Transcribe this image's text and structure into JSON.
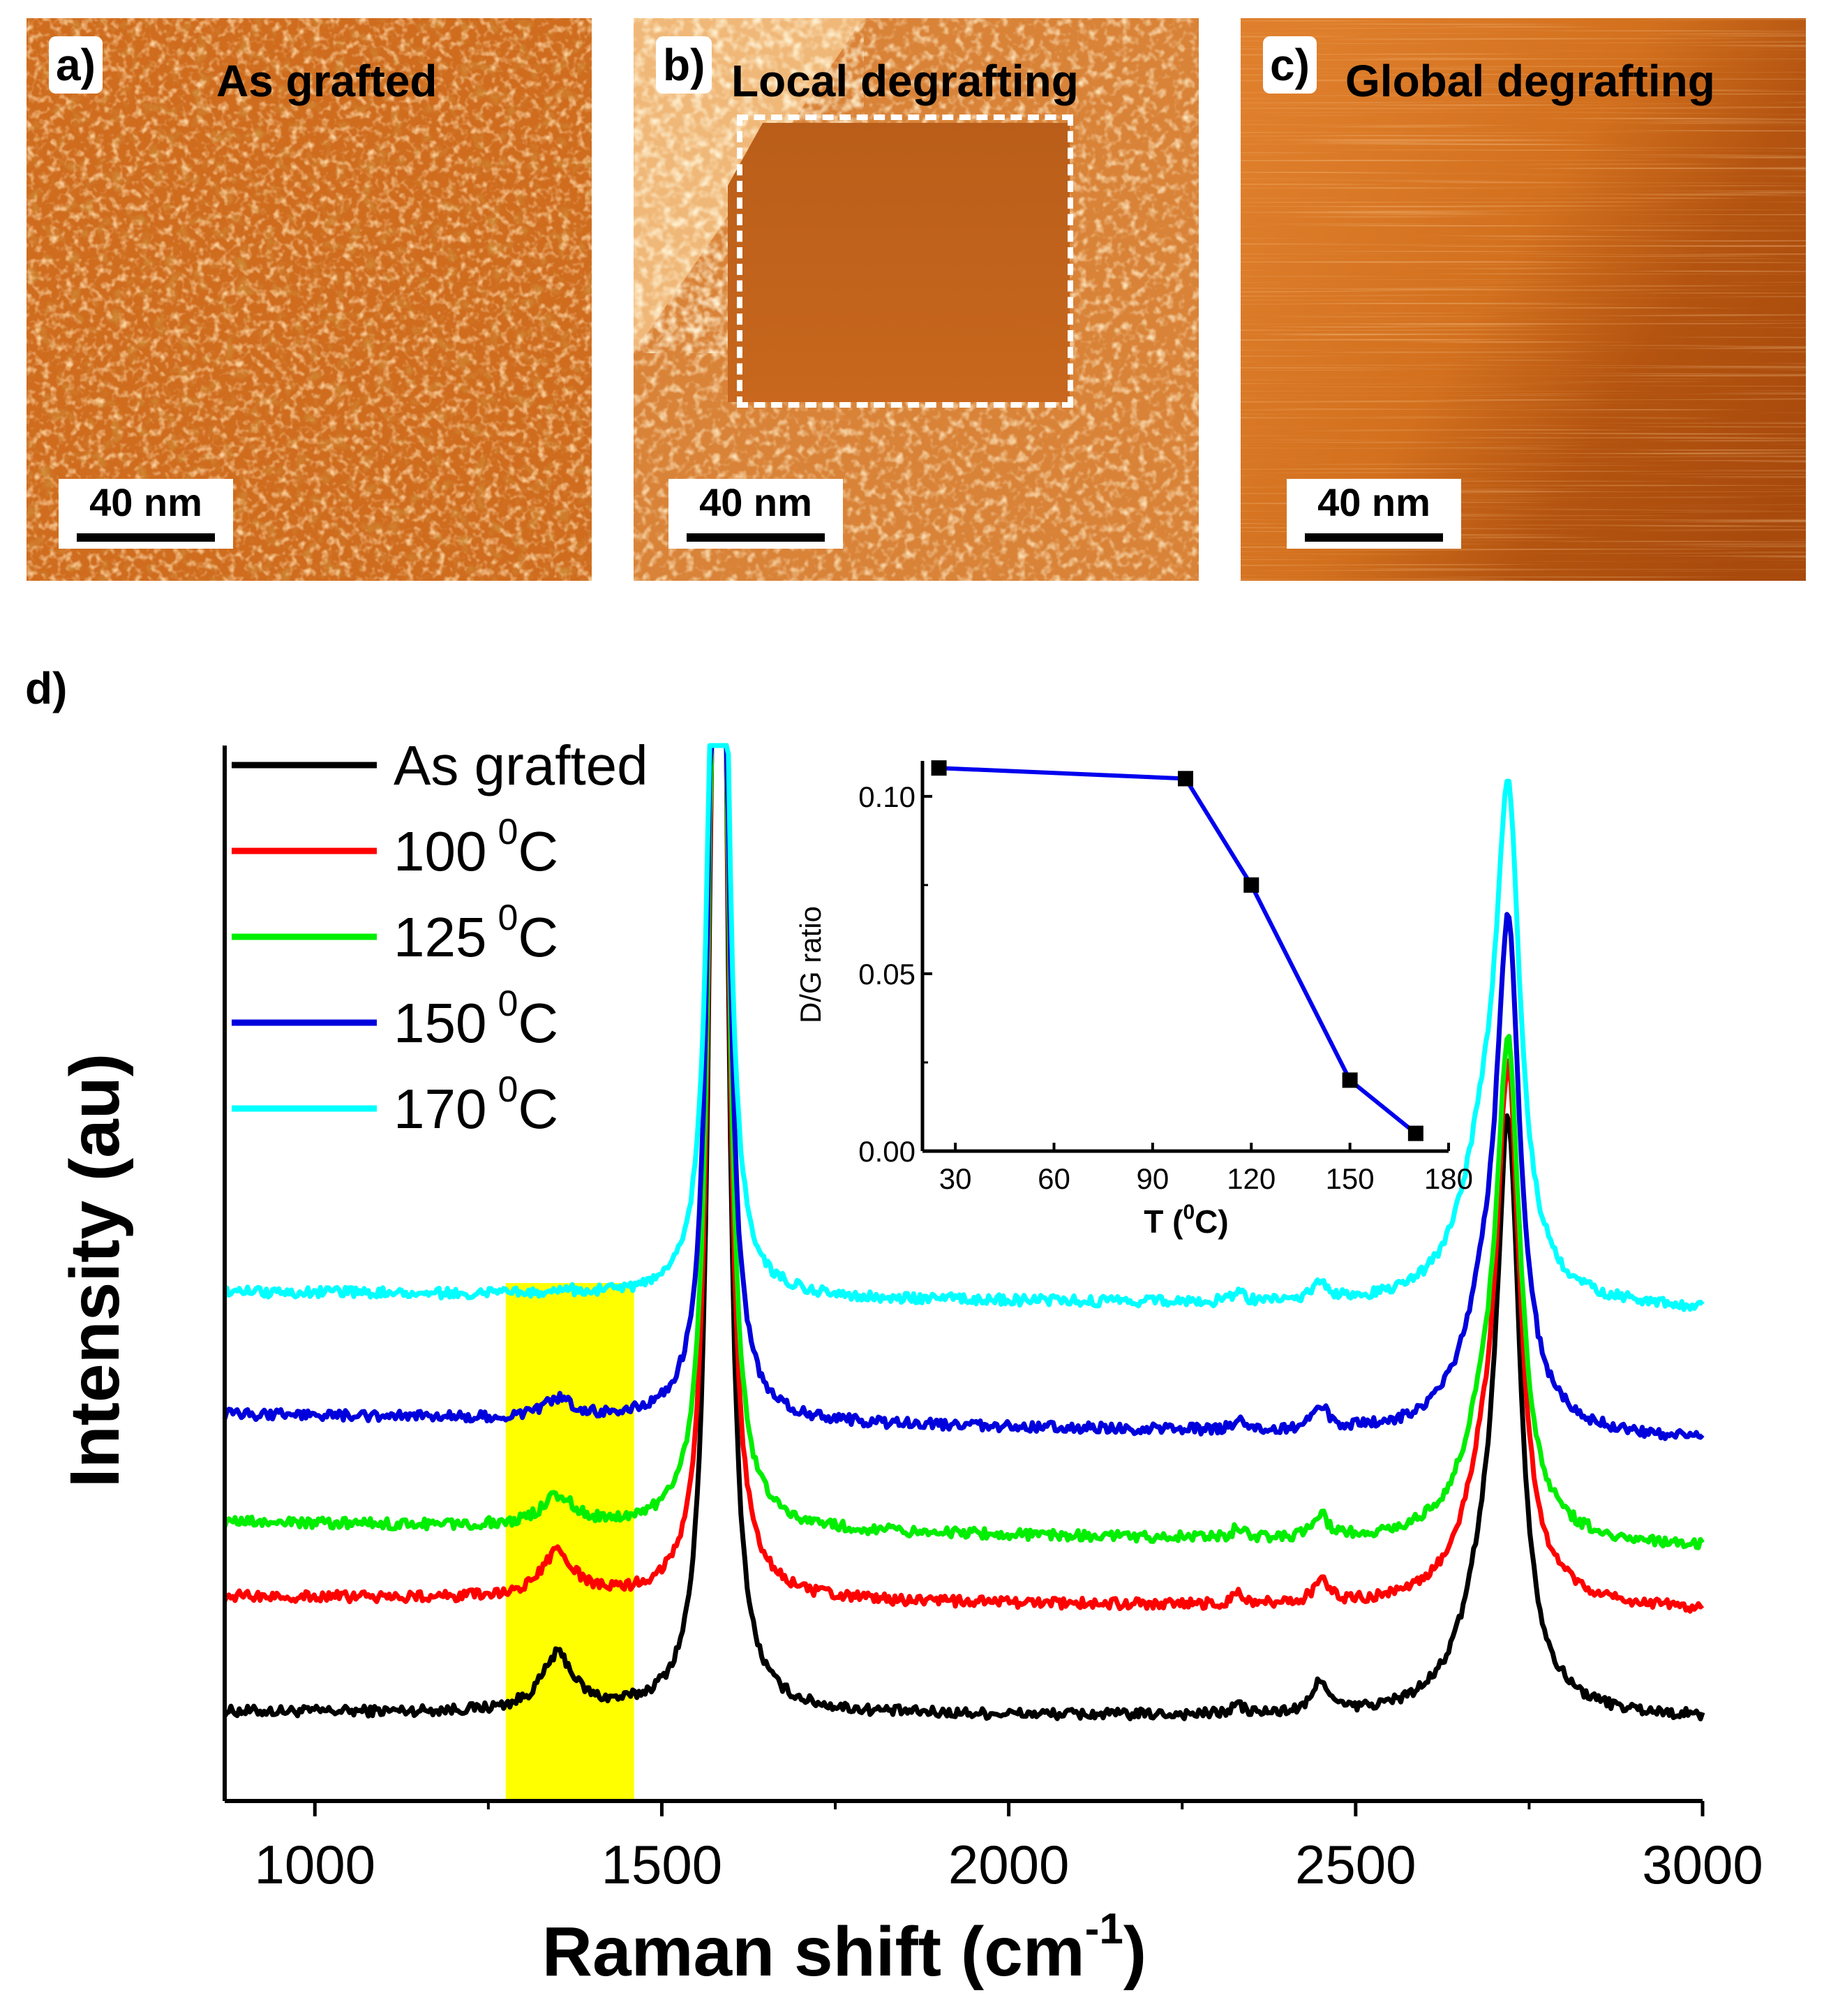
{
  "panels": [
    {
      "label": "a)",
      "title": "As grafted",
      "scalebar": "40 nm"
    },
    {
      "label": "b)",
      "title": "Local degrafting",
      "scalebar": "40 nm"
    },
    {
      "label": "c)",
      "title": "Global degrafting",
      "scalebar": "40 nm"
    }
  ],
  "panel_d_label": "d)",
  "colors": {
    "afm_base": "#cc6a1a",
    "afm_light": "#f2a860",
    "afm_dark": "#9e4a0c",
    "highlight": "#ffff00"
  },
  "chart_data": [
    {
      "type": "line",
      "title": "",
      "xlabel": "Raman shift (cm-1)",
      "xlabel_main": "Raman shift (cm",
      "xlabel_sup": "-1",
      "xlabel_close": ")",
      "ylabel": "Intensity (au)",
      "xlim": [
        870,
        3000
      ],
      "ylim": [
        0,
        14.2
      ],
      "xticks": [
        1000,
        1500,
        2000,
        2500,
        3000
      ],
      "highlight_region": [
        1275,
        1460
      ],
      "legend": {
        "position": "top-left",
        "entries": [
          {
            "label": "As grafted",
            "color": "#000000"
          },
          {
            "label": "100",
            "sup": "0",
            "unit": "C",
            "color": "#ff0000"
          },
          {
            "label": "125",
            "sup": "0",
            "unit": "C",
            "color": "#00ee00"
          },
          {
            "label": "150",
            "sup": "0",
            "unit": "C",
            "color": "#0000dd"
          },
          {
            "label": "170",
            "sup": "0",
            "unit": "C",
            "color": "#00ffff"
          }
        ]
      },
      "series": [
        {
          "name": "As grafted",
          "color": "#000000",
          "baseline": 1.2,
          "tilt": -0.1,
          "d_peak": 0.75,
          "g_peak": 26.0,
          "twod_peak": 7.2,
          "twod_shoulder": 1.45,
          "peak_2450": 0.45
        },
        {
          "name": "100 0C",
          "color": "#ff0000",
          "baseline": 2.75,
          "tilt": -0.2,
          "d_peak": 0.6,
          "g_peak": 24.0,
          "twod_peak": 6.5,
          "twod_shoulder": 1.35,
          "peak_2450": 0.35
        },
        {
          "name": "125 0C",
          "color": "#00ee00",
          "baseline": 3.75,
          "tilt": -0.35,
          "d_peak": 0.4,
          "g_peak": 23.0,
          "twod_peak": 6.0,
          "twod_shoulder": 1.3,
          "peak_2450": 0.3
        },
        {
          "name": "150 0C",
          "color": "#0000dd",
          "baseline": 5.2,
          "tilt": -0.35,
          "d_peak": 0.25,
          "g_peak": 21.0,
          "twod_peak": 6.1,
          "twod_shoulder": 1.4,
          "peak_2450": 0.32
        },
        {
          "name": "170 0C",
          "color": "#00ffff",
          "baseline": 6.85,
          "tilt": -0.25,
          "d_peak": 0.05,
          "g_peak": 19.0,
          "twod_peak": 5.9,
          "twod_shoulder": 1.9,
          "peak_2450": 0.25
        }
      ]
    },
    {
      "type": "line",
      "title": "",
      "xlabel": "T (0C)",
      "xlabel_main": "T (",
      "xlabel_sup": "0",
      "xlabel_close": "C)",
      "ylabel": "D/G ratio",
      "xlim": [
        20,
        180
      ],
      "ylim": [
        0.0,
        0.11
      ],
      "xticks": [
        30,
        60,
        90,
        120,
        150,
        180
      ],
      "yticks": [
        0.0,
        0.05,
        0.1
      ],
      "yticklabels": [
        "0.00",
        "0.05",
        "0.10"
      ],
      "series": [
        {
          "name": "D/G ratio",
          "color": "#0000ee",
          "x": [
            25,
            100,
            120,
            150,
            170
          ],
          "y": [
            0.108,
            0.105,
            0.075,
            0.02,
            0.005
          ]
        }
      ]
    }
  ]
}
